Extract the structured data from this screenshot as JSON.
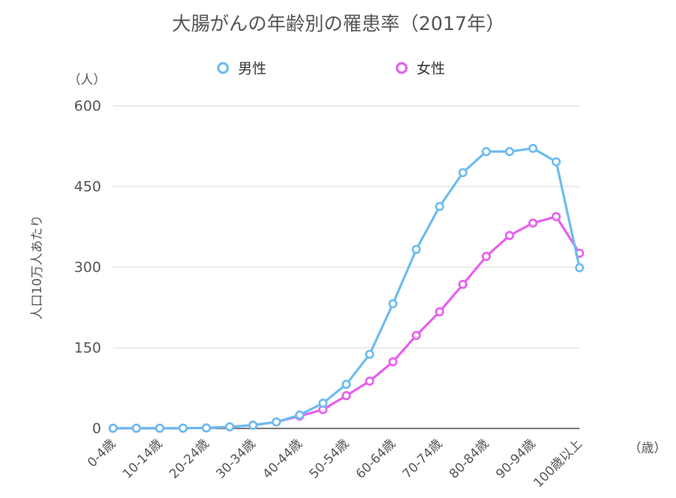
{
  "chart_data": {
    "type": "line",
    "title": "大腸がんの年齢別の罹患率（2017年）",
    "y_unit": "（人）",
    "ylabel": "人口10万人あたり",
    "x_unit": "（歳）",
    "ylim": [
      0,
      600
    ],
    "yticks": [
      0,
      150,
      300,
      450,
      600
    ],
    "grid": true,
    "legend_position": "top",
    "categories": [
      "0-4歳",
      "5-9歳",
      "10-14歳",
      "15-19歳",
      "20-24歳",
      "25-29歳",
      "30-34歳",
      "35-39歳",
      "40-44歳",
      "45-49歳",
      "50-54歳",
      "55-59歳",
      "60-64歳",
      "65-69歳",
      "70-74歳",
      "75-79歳",
      "80-84歳",
      "85-89歳",
      "90-94歳",
      "95-99歳",
      "100歳以上"
    ],
    "x_tick_labels": [
      "0-4歳",
      "",
      "10-14歳",
      "",
      "20-24歳",
      "",
      "30-34歳",
      "",
      "40-44歳",
      "",
      "50-54歳",
      "",
      "60-64歳",
      "",
      "70-74歳",
      "",
      "80-84歳",
      "",
      "90-94歳",
      "",
      "100歳以上"
    ],
    "series": [
      {
        "name": "男性",
        "color": "#6cbcef",
        "values": [
          0.3,
          0.3,
          0.3,
          0.5,
          1,
          3,
          6,
          12,
          25,
          47,
          82,
          138,
          232,
          333,
          413,
          476,
          515,
          515,
          521,
          496,
          299
        ]
      },
      {
        "name": "女性",
        "color": "#e75ef0",
        "values": [
          0.3,
          0.3,
          0.3,
          0.5,
          1,
          3,
          6,
          12,
          23,
          35,
          61,
          88,
          124,
          173,
          217,
          268,
          320,
          359,
          382,
          394,
          326
        ]
      }
    ]
  }
}
